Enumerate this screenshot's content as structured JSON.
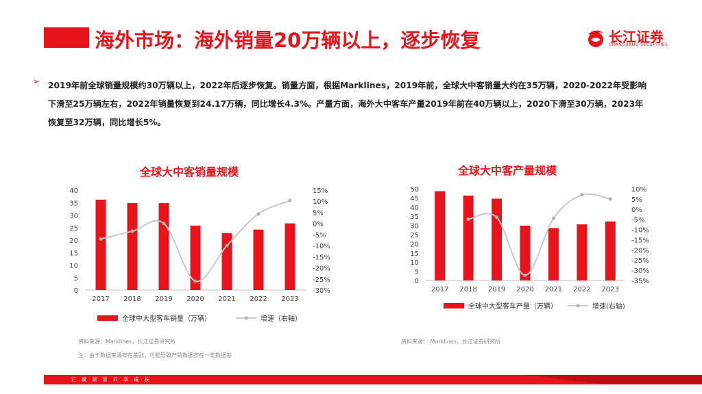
{
  "header": {
    "title": "海外市场：海外销量20万辆以上，逐步恢复",
    "logo_text": "长江证券",
    "logo_sub": "CHANGJIANG SECURITIES",
    "brand_color": "#e8141c"
  },
  "bullet": {
    "mark": "➢",
    "text": "2019年前全球销量规模约30万辆以上，2022年后逐步恢复。销量方面，根据Marklines，2019年前，全球大中客销量大约在35万辆，2020-2022年受影响下滑至25万辆左右，2022年销量恢复到24.17万辆，同比增长4.3%。产量方面，海外大中客车产量2019年前在40万辆以上，2020下滑至30万辆，2023年恢复至32万辆，同比增长5%。"
  },
  "chart_data": [
    {
      "type": "bar",
      "title": "全球大中客销量规模",
      "categories": [
        "2017",
        "2018",
        "2019",
        "2020",
        "2021",
        "2022",
        "2023"
      ],
      "series": [
        {
          "name": "全球中大型客车销量（万辆）",
          "kind": "bar",
          "axis": "left",
          "values": [
            36.2,
            34.8,
            34.8,
            25.8,
            22.8,
            24.2,
            26.7
          ]
        },
        {
          "name": "增速（右轴）",
          "kind": "line",
          "axis": "right",
          "values": [
            -7,
            -3.5,
            0,
            -26,
            -10,
            4.3,
            10.3
          ]
        }
      ],
      "ylim": [
        0,
        40
      ],
      "yticks": [
        "0",
        "5",
        "10",
        "15",
        "20",
        "25",
        "30",
        "35",
        "40"
      ],
      "y2lim": [
        -30,
        15
      ],
      "y2ticks": [
        "-30%",
        "-25%",
        "-20%",
        "-15%",
        "-10%",
        "-5%",
        "0%",
        "5%",
        "10%",
        "15%"
      ],
      "legend": [
        "全球中大型客车销量（万辆）",
        "增速（右轴）"
      ],
      "source": "资料来源：Marklines，长江证券研究所",
      "note": "注：由于数据来源存在差别，可能导致产销数据存在一定数据差"
    },
    {
      "type": "bar",
      "title": "全球大中客产量规模",
      "categories": [
        "2017",
        "2018",
        "2019",
        "2020",
        "2021",
        "2022",
        "2023"
      ],
      "series": [
        {
          "name": "全球中大型客车产量（万辆）",
          "kind": "bar",
          "axis": "left",
          "values": [
            48.7,
            46.3,
            44.6,
            29.9,
            28.6,
            30.6,
            32.2
          ]
        },
        {
          "name": "增速(右轴)",
          "kind": "line",
          "axis": "right",
          "values": [
            null,
            -5,
            -4,
            -32.5,
            -4.5,
            7,
            5
          ]
        }
      ],
      "ylim": [
        0,
        50
      ],
      "yticks": [
        "0",
        "5",
        "10",
        "15",
        "20",
        "25",
        "30",
        "35",
        "40",
        "45",
        "50"
      ],
      "y2lim": [
        -35,
        10
      ],
      "y2ticks": [
        "-35%",
        "-30%",
        "-25%",
        "-20%",
        "-15%",
        "-10%",
        "-5%",
        "0%",
        "5%",
        "10%"
      ],
      "legend": [
        "全球中大型客车产量（万辆）",
        "增速(右轴)"
      ],
      "source": "资料来源：  Marklines，长江证券研究所"
    }
  ],
  "footer": {
    "slogan": "汇 聚 财 智   共 享 成 长"
  }
}
